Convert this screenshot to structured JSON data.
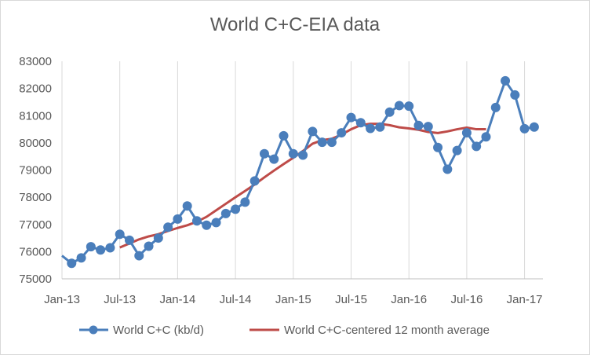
{
  "chart_data": {
    "type": "line",
    "title": "World C+C-EIA data",
    "xlabel": "",
    "ylabel": "",
    "ylim": [
      75000,
      83000
    ],
    "yticks": [
      75000,
      76000,
      77000,
      78000,
      79000,
      80000,
      81000,
      82000,
      83000
    ],
    "xtick_labels": [
      "Jan-13",
      "Jul-13",
      "Jan-14",
      "Jul-14",
      "Jan-15",
      "Jul-15",
      "Jan-16",
      "Jul-16",
      "Jan-17"
    ],
    "grid": "vertical",
    "legend_position": "bottom",
    "x": [
      "Jan-13",
      "Feb-13",
      "Mar-13",
      "Apr-13",
      "May-13",
      "Jun-13",
      "Jul-13",
      "Aug-13",
      "Sep-13",
      "Oct-13",
      "Nov-13",
      "Dec-13",
      "Jan-14",
      "Feb-14",
      "Mar-14",
      "Apr-14",
      "May-14",
      "Jun-14",
      "Jul-14",
      "Aug-14",
      "Sep-14",
      "Oct-14",
      "Nov-14",
      "Dec-14",
      "Jan-15",
      "Feb-15",
      "Mar-15",
      "Apr-15",
      "May-15",
      "Jun-15",
      "Jul-15",
      "Aug-15",
      "Sep-15",
      "Oct-15",
      "Nov-15",
      "Dec-15",
      "Jan-16",
      "Feb-16",
      "Mar-16",
      "Apr-16",
      "May-16",
      "Jun-16",
      "Jul-16",
      "Aug-16",
      "Sep-16",
      "Oct-16",
      "Nov-16",
      "Dec-16",
      "Jan-17",
      "Feb-17"
    ],
    "series": [
      {
        "name": "World C+C (kb/d)",
        "color": "#4a7ebb",
        "marker": "circle",
        "values": [
          75850,
          75570,
          75770,
          76180,
          76060,
          76140,
          76640,
          76420,
          75850,
          76200,
          76500,
          76900,
          77200,
          77680,
          77130,
          76970,
          77070,
          77400,
          77560,
          77820,
          78600,
          79600,
          79400,
          80260,
          79600,
          79550,
          80420,
          80020,
          80020,
          80370,
          80930,
          80740,
          80530,
          80580,
          81130,
          81370,
          81350,
          80640,
          80600,
          79830,
          79030,
          79720,
          80370,
          79870,
          80220,
          81300,
          82280,
          81760,
          80520,
          80580
        ]
      },
      {
        "name": "World C+C-centered 12 month average",
        "color": "#be4b48",
        "marker": "none",
        "values": [
          null,
          null,
          null,
          null,
          null,
          null,
          76150,
          76300,
          76450,
          76560,
          76640,
          76760,
          76870,
          76970,
          77100,
          77280,
          77520,
          77760,
          78000,
          78230,
          78470,
          78730,
          78980,
          79220,
          79450,
          79700,
          79970,
          80100,
          80150,
          80300,
          80500,
          80650,
          80700,
          80700,
          80650,
          80570,
          80530,
          80480,
          80400,
          80360,
          80420,
          80500,
          80560,
          80500,
          80500,
          null,
          null,
          null,
          null,
          null
        ]
      }
    ]
  }
}
